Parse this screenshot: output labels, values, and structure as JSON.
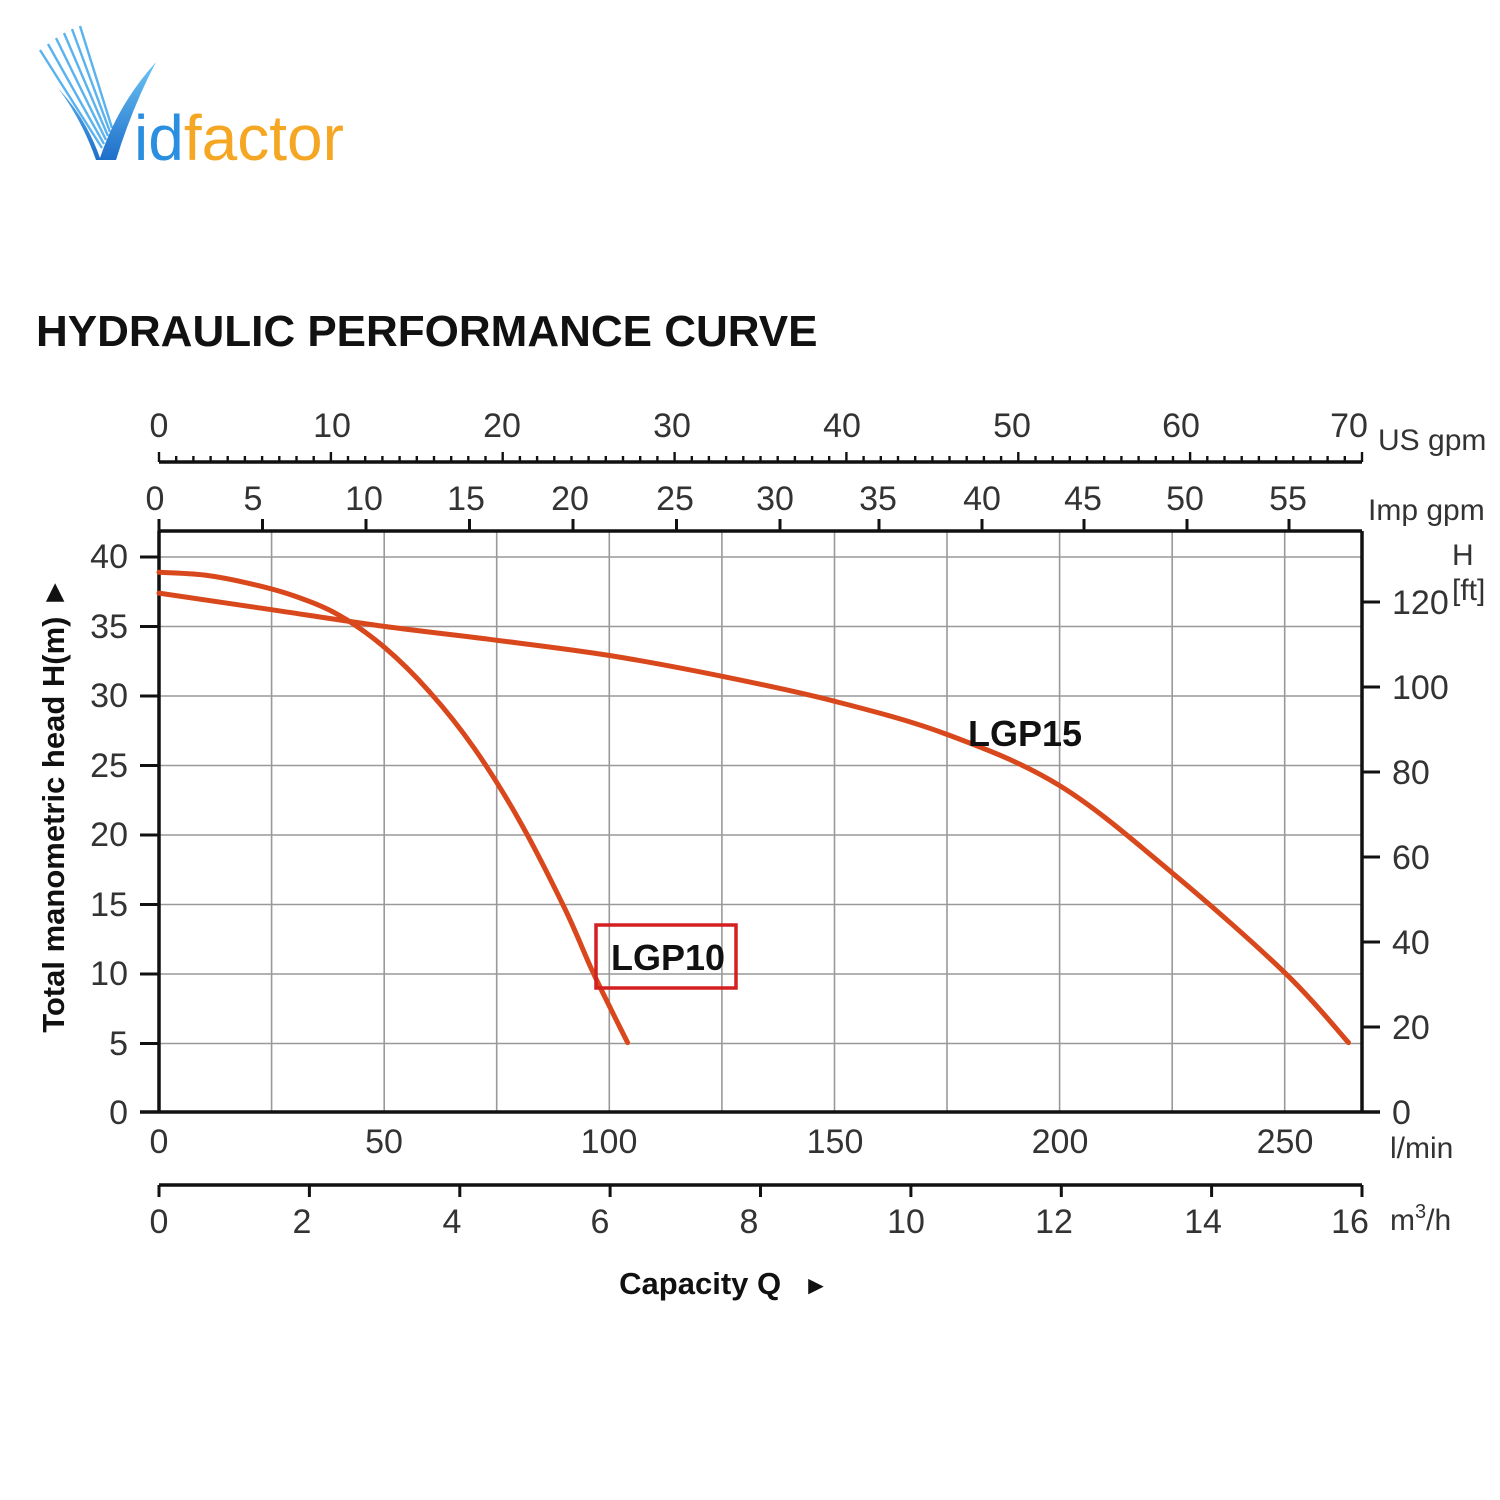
{
  "logo": {
    "text_prefix": "V",
    "text_id": "id",
    "text_factor": "factor",
    "colors": {
      "blue": "#2a8fe0",
      "orange": "#f5a623"
    }
  },
  "chart_data": {
    "type": "line",
    "title": "HYDRAULIC PERFORMANCE CURVE",
    "xlabel": "Capacity Q",
    "xlabel_arrow": "►",
    "ylabel": "Total manometric head H(m) ►",
    "xlim": [
      0,
      267
    ],
    "ylim": [
      0,
      40
    ],
    "grid": true,
    "colors": {
      "curve": "#d9481c",
      "grid": "#999999",
      "axis": "#111111",
      "highlight": "#d42020"
    },
    "axes": {
      "left": {
        "unit": "m",
        "ticks": [
          "0",
          "5",
          "10",
          "15",
          "20",
          "25",
          "30",
          "35",
          "40"
        ]
      },
      "right": {
        "unit_line1": "H",
        "unit_line2": "[ft]",
        "ticks": [
          "0",
          "20",
          "40",
          "60",
          "80",
          "100",
          "120"
        ]
      },
      "bottom_lmin": {
        "unit": "l/min",
        "ticks": [
          "0",
          "50",
          "100",
          "150",
          "200",
          "250"
        ]
      },
      "bottom_m3h": {
        "unit_base": "m",
        "unit_sup": "3",
        "unit_tail": "/h",
        "ticks": [
          "0",
          "2",
          "4",
          "6",
          "8",
          "10",
          "12",
          "14",
          "16"
        ]
      },
      "top_imp": {
        "unit": "Imp gpm",
        "ticks": [
          "0",
          "5",
          "10",
          "15",
          "20",
          "25",
          "30",
          "35",
          "40",
          "45",
          "50",
          "55"
        ]
      },
      "top_us": {
        "unit": "US gpm",
        "ticks": [
          "0",
          "10",
          "20",
          "30",
          "40",
          "50",
          "60",
          "70"
        ]
      }
    },
    "series": [
      {
        "name": "LGP10",
        "highlighted": true,
        "x": [
          0,
          10,
          20,
          30,
          40,
          50,
          60,
          70,
          80,
          90,
          96,
          100,
          104
        ],
        "y": [
          38.9,
          38.7,
          38.1,
          37.2,
          35.8,
          33.5,
          30.3,
          26.2,
          21.0,
          14.7,
          10.3,
          7.6,
          5.0
        ]
      },
      {
        "name": "LGP15",
        "highlighted": false,
        "x": [
          0,
          25,
          50,
          75,
          100,
          125,
          150,
          175,
          200,
          225,
          250,
          264
        ],
        "y": [
          37.4,
          36.2,
          35.0,
          34.0,
          32.9,
          31.4,
          29.6,
          27.2,
          23.5,
          17.2,
          10.0,
          5.0
        ]
      }
    ]
  }
}
